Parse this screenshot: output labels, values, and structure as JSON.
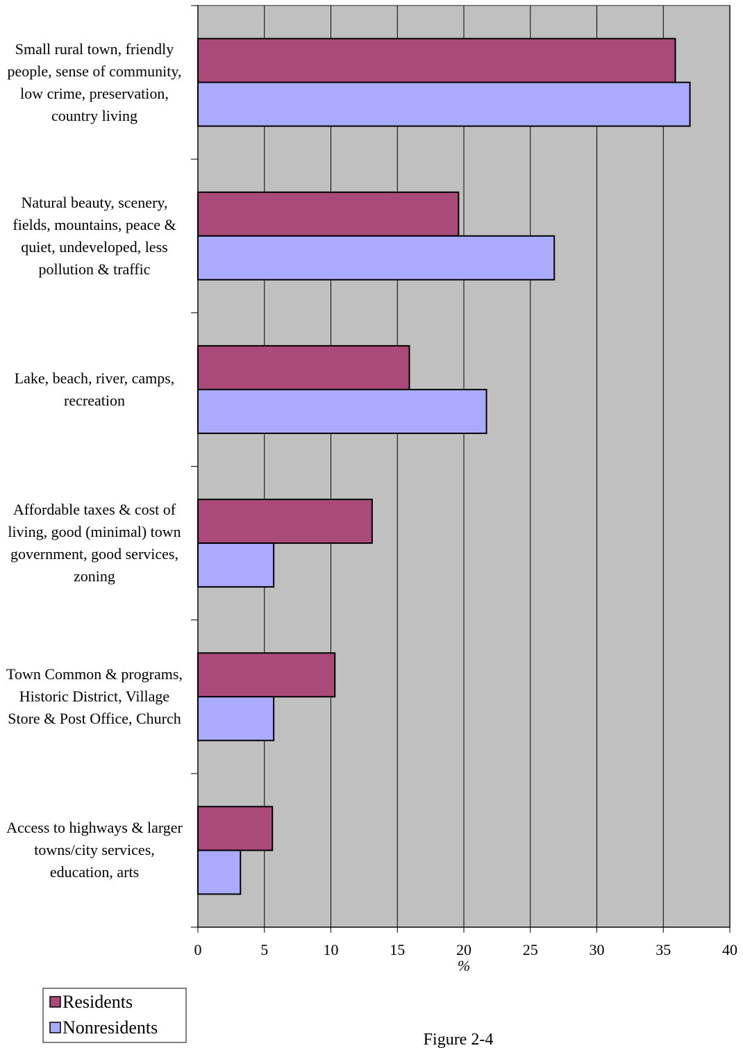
{
  "chart_data": {
    "type": "hbar",
    "categories": [
      "Small rural town, friendly people, sense of community, low crime, preservation, country living",
      "Natural beauty, scenery, fields, mountains, peace & quiet, undeveloped, less pollution & traffic",
      "Lake, beach, river, camps, recreation",
      "Affordable taxes & cost of living, good (minimal) town government, good services, zoning",
      "Town Common & programs, Historic District, Village Store & Post Office, Church",
      "Access to highways & larger towns/city services, education, arts"
    ],
    "series": [
      {
        "name": "Residents",
        "color": "#a94a78",
        "values": [
          35.9,
          19.6,
          15.9,
          13.1,
          10.3,
          5.6
        ]
      },
      {
        "name": "Nonresidents",
        "color": "#aaaaff",
        "values": [
          37.0,
          26.8,
          21.7,
          5.7,
          5.7,
          3.2
        ]
      }
    ],
    "xlabel": "%",
    "xlim": [
      0,
      40
    ],
    "xticks": [
      0,
      5,
      10,
      15,
      20,
      25,
      30,
      35,
      40
    ],
    "grid": true,
    "legend": "bottom-left",
    "caption": "Figure 2-4"
  }
}
